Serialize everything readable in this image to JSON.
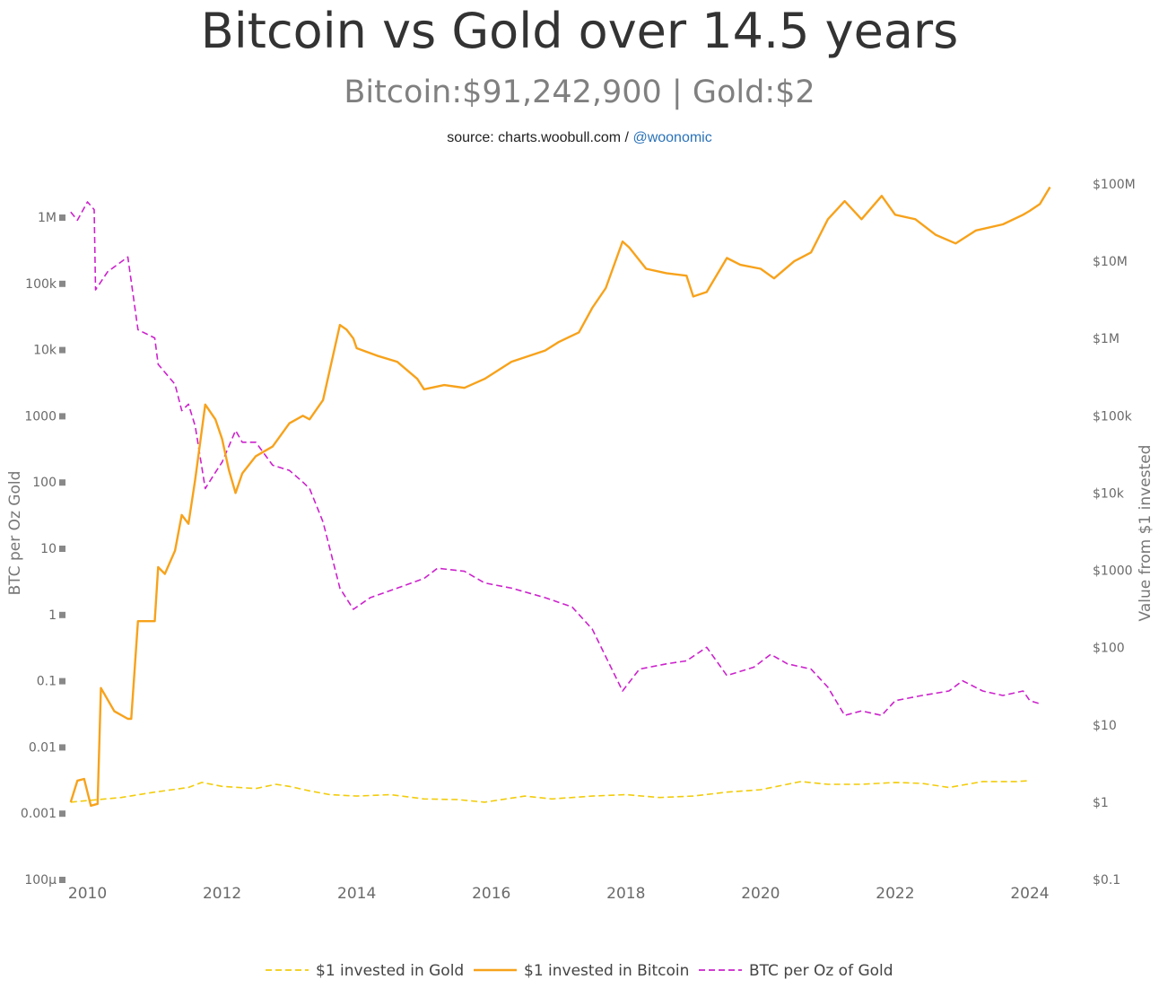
{
  "header": {
    "title": "Bitcoin vs Gold over 14.5 years",
    "subtitle": "Bitcoin:$91,242,900 | Gold:$2",
    "source_prefix": "source: charts.woobull.com / ",
    "source_handle": "@woonomic"
  },
  "chart_data": {
    "type": "line",
    "title": "Bitcoin vs Gold over 14.5 years",
    "subtitle": "Bitcoin:$91,242,900 | Gold:$2",
    "x_range": [
      2009.7,
      2024.4
    ],
    "x_ticks": [
      2010,
      2012,
      2014,
      2016,
      2018,
      2020,
      2022,
      2024
    ],
    "y_left": {
      "label": "BTC per Oz Gold",
      "scale": "log",
      "range": [
        0.0001,
        3000000
      ],
      "ticks": [
        {
          "value": 1000000,
          "label": "1M"
        },
        {
          "value": 100000,
          "label": "100k"
        },
        {
          "value": 10000,
          "label": "10k"
        },
        {
          "value": 1000,
          "label": "1000"
        },
        {
          "value": 100,
          "label": "100"
        },
        {
          "value": 10,
          "label": "10"
        },
        {
          "value": 1,
          "label": "1"
        },
        {
          "value": 0.1,
          "label": "0.1"
        },
        {
          "value": 0.01,
          "label": "0.01"
        },
        {
          "value": 0.001,
          "label": "0.001"
        },
        {
          "value": 0.0001,
          "label": "100μ"
        }
      ]
    },
    "y_right": {
      "label": "Value from $1 invested",
      "scale": "log",
      "range": [
        0.1,
        150000000
      ],
      "ticks": [
        {
          "value": 100000000,
          "label": "$100M"
        },
        {
          "value": 10000000,
          "label": "$10M"
        },
        {
          "value": 1000000,
          "label": "$1M"
        },
        {
          "value": 100000,
          "label": "$100k"
        },
        {
          "value": 10000,
          "label": "$10k"
        },
        {
          "value": 1000,
          "label": "$1000"
        },
        {
          "value": 100,
          "label": "$100"
        },
        {
          "value": 10,
          "label": "$10"
        },
        {
          "value": 1,
          "label": "$1"
        },
        {
          "value": 0.1,
          "label": "$0.1"
        }
      ]
    },
    "legend_position": "bottom-center",
    "grid": false,
    "series": [
      {
        "name": "$1 invested in Gold",
        "axis": "right",
        "color": "#f2cc0c",
        "dash": "dashed",
        "points": [
          [
            2009.75,
            1.0
          ],
          [
            2010.0,
            1.05
          ],
          [
            2010.5,
            1.15
          ],
          [
            2011.0,
            1.35
          ],
          [
            2011.5,
            1.55
          ],
          [
            2011.7,
            1.8
          ],
          [
            2012.0,
            1.6
          ],
          [
            2012.5,
            1.5
          ],
          [
            2012.8,
            1.7
          ],
          [
            2013.0,
            1.6
          ],
          [
            2013.3,
            1.4
          ],
          [
            2013.6,
            1.25
          ],
          [
            2014.0,
            1.2
          ],
          [
            2014.5,
            1.25
          ],
          [
            2015.0,
            1.1
          ],
          [
            2015.5,
            1.08
          ],
          [
            2015.9,
            1.0
          ],
          [
            2016.5,
            1.2
          ],
          [
            2016.9,
            1.1
          ],
          [
            2017.5,
            1.2
          ],
          [
            2018.0,
            1.25
          ],
          [
            2018.5,
            1.15
          ],
          [
            2019.0,
            1.2
          ],
          [
            2019.5,
            1.35
          ],
          [
            2020.0,
            1.45
          ],
          [
            2020.6,
            1.85
          ],
          [
            2021.0,
            1.7
          ],
          [
            2021.5,
            1.7
          ],
          [
            2022.0,
            1.8
          ],
          [
            2022.4,
            1.75
          ],
          [
            2022.8,
            1.55
          ],
          [
            2023.3,
            1.85
          ],
          [
            2023.8,
            1.85
          ],
          [
            2024.0,
            1.9
          ]
        ]
      },
      {
        "name": "$1 invested in Bitcoin",
        "axis": "right",
        "color": "#f7a21b",
        "dash": "solid",
        "points": [
          [
            2009.75,
            1.0
          ],
          [
            2009.85,
            1.9
          ],
          [
            2009.95,
            2.0
          ],
          [
            2010.05,
            0.9
          ],
          [
            2010.15,
            0.95
          ],
          [
            2010.2,
            30
          ],
          [
            2010.4,
            15
          ],
          [
            2010.6,
            12
          ],
          [
            2010.65,
            12
          ],
          [
            2010.75,
            220
          ],
          [
            2011.0,
            220
          ],
          [
            2011.05,
            1100
          ],
          [
            2011.15,
            900
          ],
          [
            2011.3,
            1800
          ],
          [
            2011.4,
            5200
          ],
          [
            2011.5,
            4000
          ],
          [
            2011.6,
            15000
          ],
          [
            2011.75,
            140000
          ],
          [
            2011.9,
            90000
          ],
          [
            2012.0,
            50000
          ],
          [
            2012.1,
            20000
          ],
          [
            2012.2,
            10000
          ],
          [
            2012.3,
            18000
          ],
          [
            2012.5,
            30000
          ],
          [
            2012.75,
            40000
          ],
          [
            2013.0,
            80000
          ],
          [
            2013.2,
            100000
          ],
          [
            2013.3,
            90000
          ],
          [
            2013.5,
            160000
          ],
          [
            2013.75,
            1500000
          ],
          [
            2013.85,
            1300000
          ],
          [
            2013.95,
            1000000
          ],
          [
            2014.0,
            750000
          ],
          [
            2014.3,
            600000
          ],
          [
            2014.6,
            500000
          ],
          [
            2014.9,
            300000
          ],
          [
            2015.0,
            220000
          ],
          [
            2015.3,
            250000
          ],
          [
            2015.6,
            230000
          ],
          [
            2015.9,
            300000
          ],
          [
            2016.3,
            500000
          ],
          [
            2016.8,
            700000
          ],
          [
            2017.0,
            900000
          ],
          [
            2017.3,
            1200000
          ],
          [
            2017.5,
            2500000
          ],
          [
            2017.7,
            4500000
          ],
          [
            2017.95,
            18000000
          ],
          [
            2018.05,
            15000000
          ],
          [
            2018.3,
            8000000
          ],
          [
            2018.6,
            7000000
          ],
          [
            2018.9,
            6500000
          ],
          [
            2019.0,
            3500000
          ],
          [
            2019.2,
            4000000
          ],
          [
            2019.5,
            11000000
          ],
          [
            2019.7,
            9000000
          ],
          [
            2020.0,
            8000000
          ],
          [
            2020.2,
            6000000
          ],
          [
            2020.5,
            10000000
          ],
          [
            2020.75,
            13000000
          ],
          [
            2021.0,
            35000000
          ],
          [
            2021.25,
            60000000
          ],
          [
            2021.5,
            35000000
          ],
          [
            2021.8,
            70000000
          ],
          [
            2022.0,
            40000000
          ],
          [
            2022.3,
            35000000
          ],
          [
            2022.6,
            22000000
          ],
          [
            2022.9,
            17000000
          ],
          [
            2023.2,
            25000000
          ],
          [
            2023.6,
            30000000
          ],
          [
            2023.9,
            40000000
          ],
          [
            2024.0,
            45000000
          ],
          [
            2024.15,
            55000000
          ],
          [
            2024.3,
            91000000
          ]
        ]
      },
      {
        "name": "BTC per Oz of Gold",
        "axis": "left",
        "color": "#cc22cc",
        "dash": "dashed",
        "points": [
          [
            2009.75,
            1200000
          ],
          [
            2009.85,
            900000
          ],
          [
            2010.0,
            1700000
          ],
          [
            2010.1,
            1300000
          ],
          [
            2010.12,
            80000
          ],
          [
            2010.3,
            150000
          ],
          [
            2010.6,
            250000
          ],
          [
            2010.75,
            20000
          ],
          [
            2011.0,
            15000
          ],
          [
            2011.05,
            6000
          ],
          [
            2011.3,
            3000
          ],
          [
            2011.4,
            1200
          ],
          [
            2011.5,
            1500
          ],
          [
            2011.6,
            700
          ],
          [
            2011.75,
            80
          ],
          [
            2011.9,
            140
          ],
          [
            2012.0,
            200
          ],
          [
            2012.2,
            600
          ],
          [
            2012.3,
            400
          ],
          [
            2012.5,
            400
          ],
          [
            2012.75,
            180
          ],
          [
            2013.0,
            150
          ],
          [
            2013.2,
            100
          ],
          [
            2013.3,
            80
          ],
          [
            2013.5,
            25
          ],
          [
            2013.75,
            2.5
          ],
          [
            2013.95,
            1.2
          ],
          [
            2014.2,
            1.8
          ],
          [
            2014.6,
            2.5
          ],
          [
            2015.0,
            3.5
          ],
          [
            2015.2,
            5.0
          ],
          [
            2015.6,
            4.5
          ],
          [
            2015.9,
            3.0
          ],
          [
            2016.3,
            2.5
          ],
          [
            2016.8,
            1.8
          ],
          [
            2017.2,
            1.3
          ],
          [
            2017.5,
            0.6
          ],
          [
            2017.95,
            0.07
          ],
          [
            2018.2,
            0.15
          ],
          [
            2018.6,
            0.18
          ],
          [
            2018.9,
            0.2
          ],
          [
            2019.2,
            0.32
          ],
          [
            2019.5,
            0.12
          ],
          [
            2019.9,
            0.16
          ],
          [
            2020.15,
            0.25
          ],
          [
            2020.4,
            0.18
          ],
          [
            2020.75,
            0.15
          ],
          [
            2021.0,
            0.08
          ],
          [
            2021.25,
            0.03
          ],
          [
            2021.5,
            0.035
          ],
          [
            2021.8,
            0.03
          ],
          [
            2022.0,
            0.05
          ],
          [
            2022.4,
            0.06
          ],
          [
            2022.8,
            0.07
          ],
          [
            2023.0,
            0.1
          ],
          [
            2023.3,
            0.07
          ],
          [
            2023.6,
            0.06
          ],
          [
            2023.9,
            0.07
          ],
          [
            2024.0,
            0.05
          ],
          [
            2024.15,
            0.045
          ]
        ]
      }
    ]
  }
}
